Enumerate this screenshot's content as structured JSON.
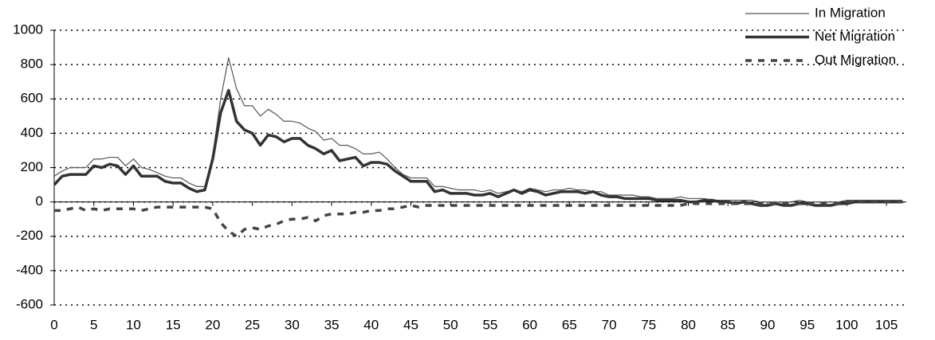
{
  "chart_data": {
    "type": "line",
    "x": [
      0,
      1,
      2,
      3,
      4,
      5,
      6,
      7,
      8,
      9,
      10,
      11,
      12,
      13,
      14,
      15,
      16,
      17,
      18,
      19,
      20,
      21,
      22,
      23,
      24,
      25,
      26,
      27,
      28,
      29,
      30,
      31,
      32,
      33,
      34,
      35,
      36,
      37,
      38,
      39,
      40,
      41,
      42,
      43,
      44,
      45,
      46,
      47,
      48,
      49,
      50,
      51,
      52,
      53,
      54,
      55,
      56,
      57,
      58,
      59,
      60,
      61,
      62,
      63,
      64,
      65,
      66,
      67,
      68,
      69,
      70,
      71,
      72,
      73,
      74,
      75,
      76,
      77,
      78,
      79,
      80,
      81,
      82,
      83,
      84,
      85,
      86,
      87,
      88,
      89,
      90,
      91,
      92,
      93,
      94,
      95,
      96,
      97,
      98,
      99,
      100,
      101,
      102,
      103,
      104,
      105,
      106,
      107
    ],
    "series": [
      {
        "name": "In Migration",
        "color": "#555555",
        "linewidth": 1.2,
        "linestyle": "solid",
        "values": [
          150,
          180,
          200,
          200,
          200,
          250,
          250,
          260,
          260,
          210,
          250,
          200,
          190,
          170,
          150,
          140,
          140,
          110,
          90,
          90,
          270,
          600,
          840,
          660,
          560,
          560,
          500,
          540,
          510,
          470,
          470,
          460,
          430,
          410,
          360,
          370,
          330,
          330,
          310,
          280,
          280,
          290,
          250,
          200,
          160,
          140,
          140,
          140,
          90,
          90,
          80,
          70,
          70,
          70,
          60,
          70,
          50,
          60,
          70,
          60,
          80,
          70,
          60,
          70,
          70,
          80,
          70,
          70,
          60,
          60,
          40,
          40,
          40,
          40,
          30,
          30,
          20,
          20,
          20,
          30,
          20,
          20,
          20,
          10,
          10,
          10,
          10,
          10,
          10,
          0,
          0,
          0,
          0,
          0,
          10,
          0,
          0,
          0,
          0,
          0,
          10,
          10,
          10,
          10,
          10,
          10,
          10,
          10
        ]
      },
      {
        "name": "Net Migration",
        "color": "#333333",
        "linewidth": 3.5,
        "linestyle": "solid",
        "values": [
          100,
          150,
          160,
          160,
          160,
          210,
          200,
          220,
          210,
          160,
          210,
          150,
          150,
          150,
          120,
          110,
          110,
          80,
          60,
          70,
          250,
          520,
          650,
          470,
          420,
          400,
          330,
          390,
          380,
          350,
          370,
          370,
          330,
          310,
          280,
          300,
          240,
          250,
          260,
          210,
          230,
          230,
          220,
          180,
          150,
          120,
          120,
          120,
          60,
          70,
          50,
          50,
          50,
          40,
          40,
          50,
          30,
          50,
          70,
          50,
          70,
          60,
          40,
          50,
          60,
          60,
          60,
          50,
          60,
          40,
          30,
          30,
          20,
          20,
          20,
          20,
          10,
          10,
          10,
          10,
          0,
          0,
          10,
          10,
          0,
          0,
          -10,
          0,
          -10,
          -20,
          -20,
          -10,
          -20,
          -20,
          -10,
          -10,
          -20,
          -20,
          -20,
          -10,
          -10,
          0,
          0,
          0,
          0,
          0,
          0,
          0
        ]
      },
      {
        "name": "Out Migration",
        "color": "#444444",
        "linewidth": 3.5,
        "linestyle": "dashed",
        "values": [
          -50,
          -50,
          -40,
          -30,
          -50,
          -40,
          -50,
          -40,
          -40,
          -40,
          -40,
          -50,
          -40,
          -30,
          -30,
          -30,
          -30,
          -30,
          -30,
          -30,
          -40,
          -120,
          -170,
          -200,
          -160,
          -150,
          -160,
          -140,
          -130,
          -110,
          -100,
          -100,
          -90,
          -110,
          -80,
          -70,
          -70,
          -70,
          -60,
          -60,
          -50,
          -50,
          -40,
          -40,
          -30,
          -20,
          -30,
          -20,
          -20,
          -20,
          -20,
          -20,
          -20,
          -20,
          -20,
          -20,
          -20,
          -20,
          -20,
          -20,
          -20,
          -20,
          -20,
          -20,
          -20,
          -20,
          -20,
          -20,
          -20,
          -20,
          -20,
          -20,
          -20,
          -20,
          -20,
          -20,
          -20,
          -20,
          -20,
          -20,
          -10,
          -10,
          -10,
          -10,
          -10,
          -10,
          -10,
          -10,
          -10,
          -10,
          -10,
          -10,
          -10,
          -10,
          -10,
          -10,
          -10,
          -10,
          -10,
          -10,
          0,
          0,
          0,
          0,
          0,
          0,
          0,
          0
        ]
      }
    ],
    "xlim": [
      0,
      107.5
    ],
    "xticks": [
      0,
      5,
      10,
      15,
      20,
      25,
      30,
      35,
      40,
      45,
      50,
      55,
      60,
      65,
      70,
      75,
      80,
      85,
      90,
      95,
      100,
      105
    ],
    "ylim": [
      -600,
      1000
    ],
    "yticks": [
      -600,
      -400,
      -200,
      0,
      200,
      400,
      600,
      800,
      1000
    ],
    "grid": true,
    "legend": "top-right"
  }
}
